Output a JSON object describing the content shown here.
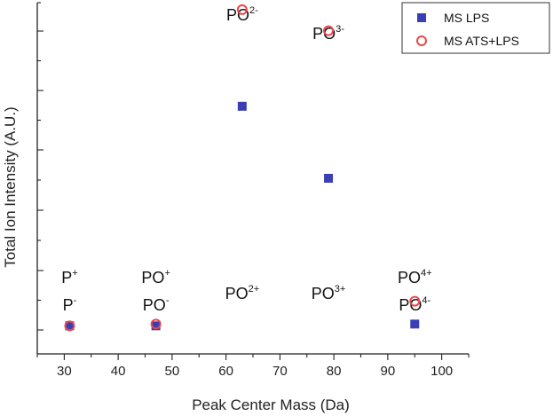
{
  "chart_data": {
    "type": "scatter",
    "xlabel": "Peak Center Mass (Da)",
    "ylabel": "Total Ion Intensity (A.U.)",
    "xlim": [
      25,
      105
    ],
    "x_ticks": [
      30,
      40,
      50,
      60,
      70,
      80,
      90,
      100
    ],
    "ylim": [
      0,
      100
    ],
    "y_tick_labels_shown": false,
    "grid": false,
    "legend_position": "top-right",
    "series": [
      {
        "name": "MS LPS",
        "marker": "filled-square",
        "color": "#3a3fb5",
        "x": [
          31,
          47,
          63,
          79,
          95
        ],
        "y": [
          8,
          8,
          70.5,
          50,
          8.5
        ]
      },
      {
        "name": "MS ATS+LPS",
        "marker": "open-circle",
        "color": "#e8484c",
        "x": [
          31,
          47,
          63,
          79,
          95
        ],
        "y": [
          8,
          8.5,
          98,
          92,
          15
        ]
      }
    ],
    "annotations": [
      {
        "base": "P",
        "sup": "+",
        "x": 31,
        "row": "upper"
      },
      {
        "base": "P",
        "sup": "-",
        "x": 31,
        "row": "lower"
      },
      {
        "base": "PO",
        "sup": "+",
        "x": 47,
        "row": "upper"
      },
      {
        "base": "PO",
        "sup": "-",
        "x": 47,
        "row": "lower"
      },
      {
        "base": "PO",
        "sup": "2+",
        "x": 63,
        "row": "lower"
      },
      {
        "base": "PO",
        "sup": "2-",
        "x": 63,
        "row": "top"
      },
      {
        "base": "PO",
        "sup": "3+",
        "x": 79,
        "row": "lower"
      },
      {
        "base": "PO",
        "sup": "3-",
        "x": 79,
        "row": "top2"
      },
      {
        "base": "PO",
        "sup": "4+",
        "x": 95,
        "row": "upper"
      },
      {
        "base": "PO",
        "sup": "4-",
        "x": 95,
        "row": "lower"
      }
    ]
  }
}
